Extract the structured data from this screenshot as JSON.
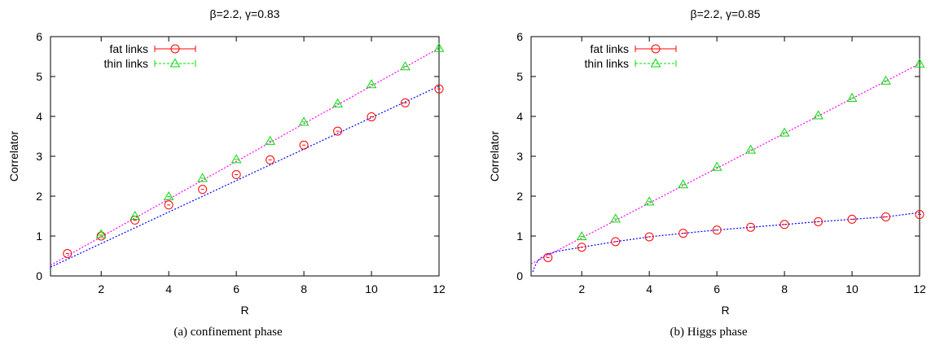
{
  "chart_data": [
    {
      "type": "scatter",
      "title": "β=2.2, γ=0.83",
      "caption": "(a) confinement phase",
      "xlabel": "R",
      "ylabel": "Correlator",
      "xlim": [
        0.5,
        12
      ],
      "ylim": [
        0,
        6
      ],
      "xticks": [
        2,
        4,
        6,
        8,
        10,
        12
      ],
      "yticks": [
        0,
        1,
        2,
        3,
        4,
        5,
        6
      ],
      "legend_position": "top-left",
      "series": [
        {
          "name": "fat links",
          "marker": "circle",
          "color": "#ff0000",
          "fit_color": "#0000ff",
          "x": [
            1,
            2,
            3,
            4,
            5,
            6,
            7,
            8,
            9,
            10,
            11,
            12
          ],
          "y": [
            0.56,
            1.0,
            1.4,
            1.78,
            2.17,
            2.54,
            2.91,
            3.28,
            3.63,
            3.99,
            4.34,
            4.69
          ],
          "fit": {
            "x": [
              0.5,
              12
            ],
            "y": [
              0.22,
              4.76
            ]
          }
        },
        {
          "name": "thin links",
          "marker": "triangle",
          "color": "#00dd00",
          "fit_color": "#ff00ff",
          "x": [
            2,
            3,
            4,
            5,
            6,
            7,
            8,
            9,
            10,
            11,
            12
          ],
          "y": [
            1.04,
            1.5,
            1.99,
            2.45,
            2.92,
            3.38,
            3.86,
            4.32,
            4.8,
            5.25,
            5.71
          ],
          "fit": {
            "x": [
              0.5,
              12
            ],
            "y": [
              0.27,
              5.71
            ]
          }
        }
      ]
    },
    {
      "type": "scatter",
      "title": "β=2.2, γ=0.85",
      "caption": "(b) Higgs phase",
      "xlabel": "R",
      "ylabel": "Correlator",
      "xlim": [
        0.5,
        12
      ],
      "ylim": [
        0,
        6
      ],
      "xticks": [
        2,
        4,
        6,
        8,
        10,
        12
      ],
      "yticks": [
        0,
        1,
        2,
        3,
        4,
        5,
        6
      ],
      "legend_position": "top-left",
      "series": [
        {
          "name": "fat links",
          "marker": "circle",
          "color": "#ff0000",
          "fit_color": "#0000ff",
          "x": [
            1,
            2,
            3,
            4,
            5,
            6,
            7,
            8,
            9,
            10,
            11,
            12
          ],
          "y": [
            0.46,
            0.72,
            0.86,
            0.98,
            1.07,
            1.15,
            1.22,
            1.29,
            1.36,
            1.42,
            1.48,
            1.54
          ],
          "fit": {
            "x": [
              0.55,
              0.6,
              0.7,
              0.8,
              1,
              1.25,
              1.5,
              2,
              3,
              4,
              5,
              6,
              7,
              8,
              9,
              10,
              11,
              12
            ],
            "y": [
              0.1,
              0.22,
              0.38,
              0.46,
              0.55,
              0.61,
              0.65,
              0.72,
              0.86,
              0.98,
              1.07,
              1.15,
              1.22,
              1.29,
              1.36,
              1.42,
              1.48,
              1.59
            ]
          }
        },
        {
          "name": "thin links",
          "marker": "triangle",
          "color": "#00dd00",
          "fit_color": "#ff00ff",
          "x": [
            2,
            3,
            4,
            5,
            6,
            7,
            8,
            9,
            10,
            11,
            12
          ],
          "y": [
            0.99,
            1.43,
            1.86,
            2.29,
            2.73,
            3.16,
            3.59,
            4.02,
            4.46,
            4.89,
            5.32
          ],
          "fit": {
            "x": [
              0.5,
              12
            ],
            "y": [
              0.3,
              5.32
            ]
          }
        }
      ]
    }
  ]
}
